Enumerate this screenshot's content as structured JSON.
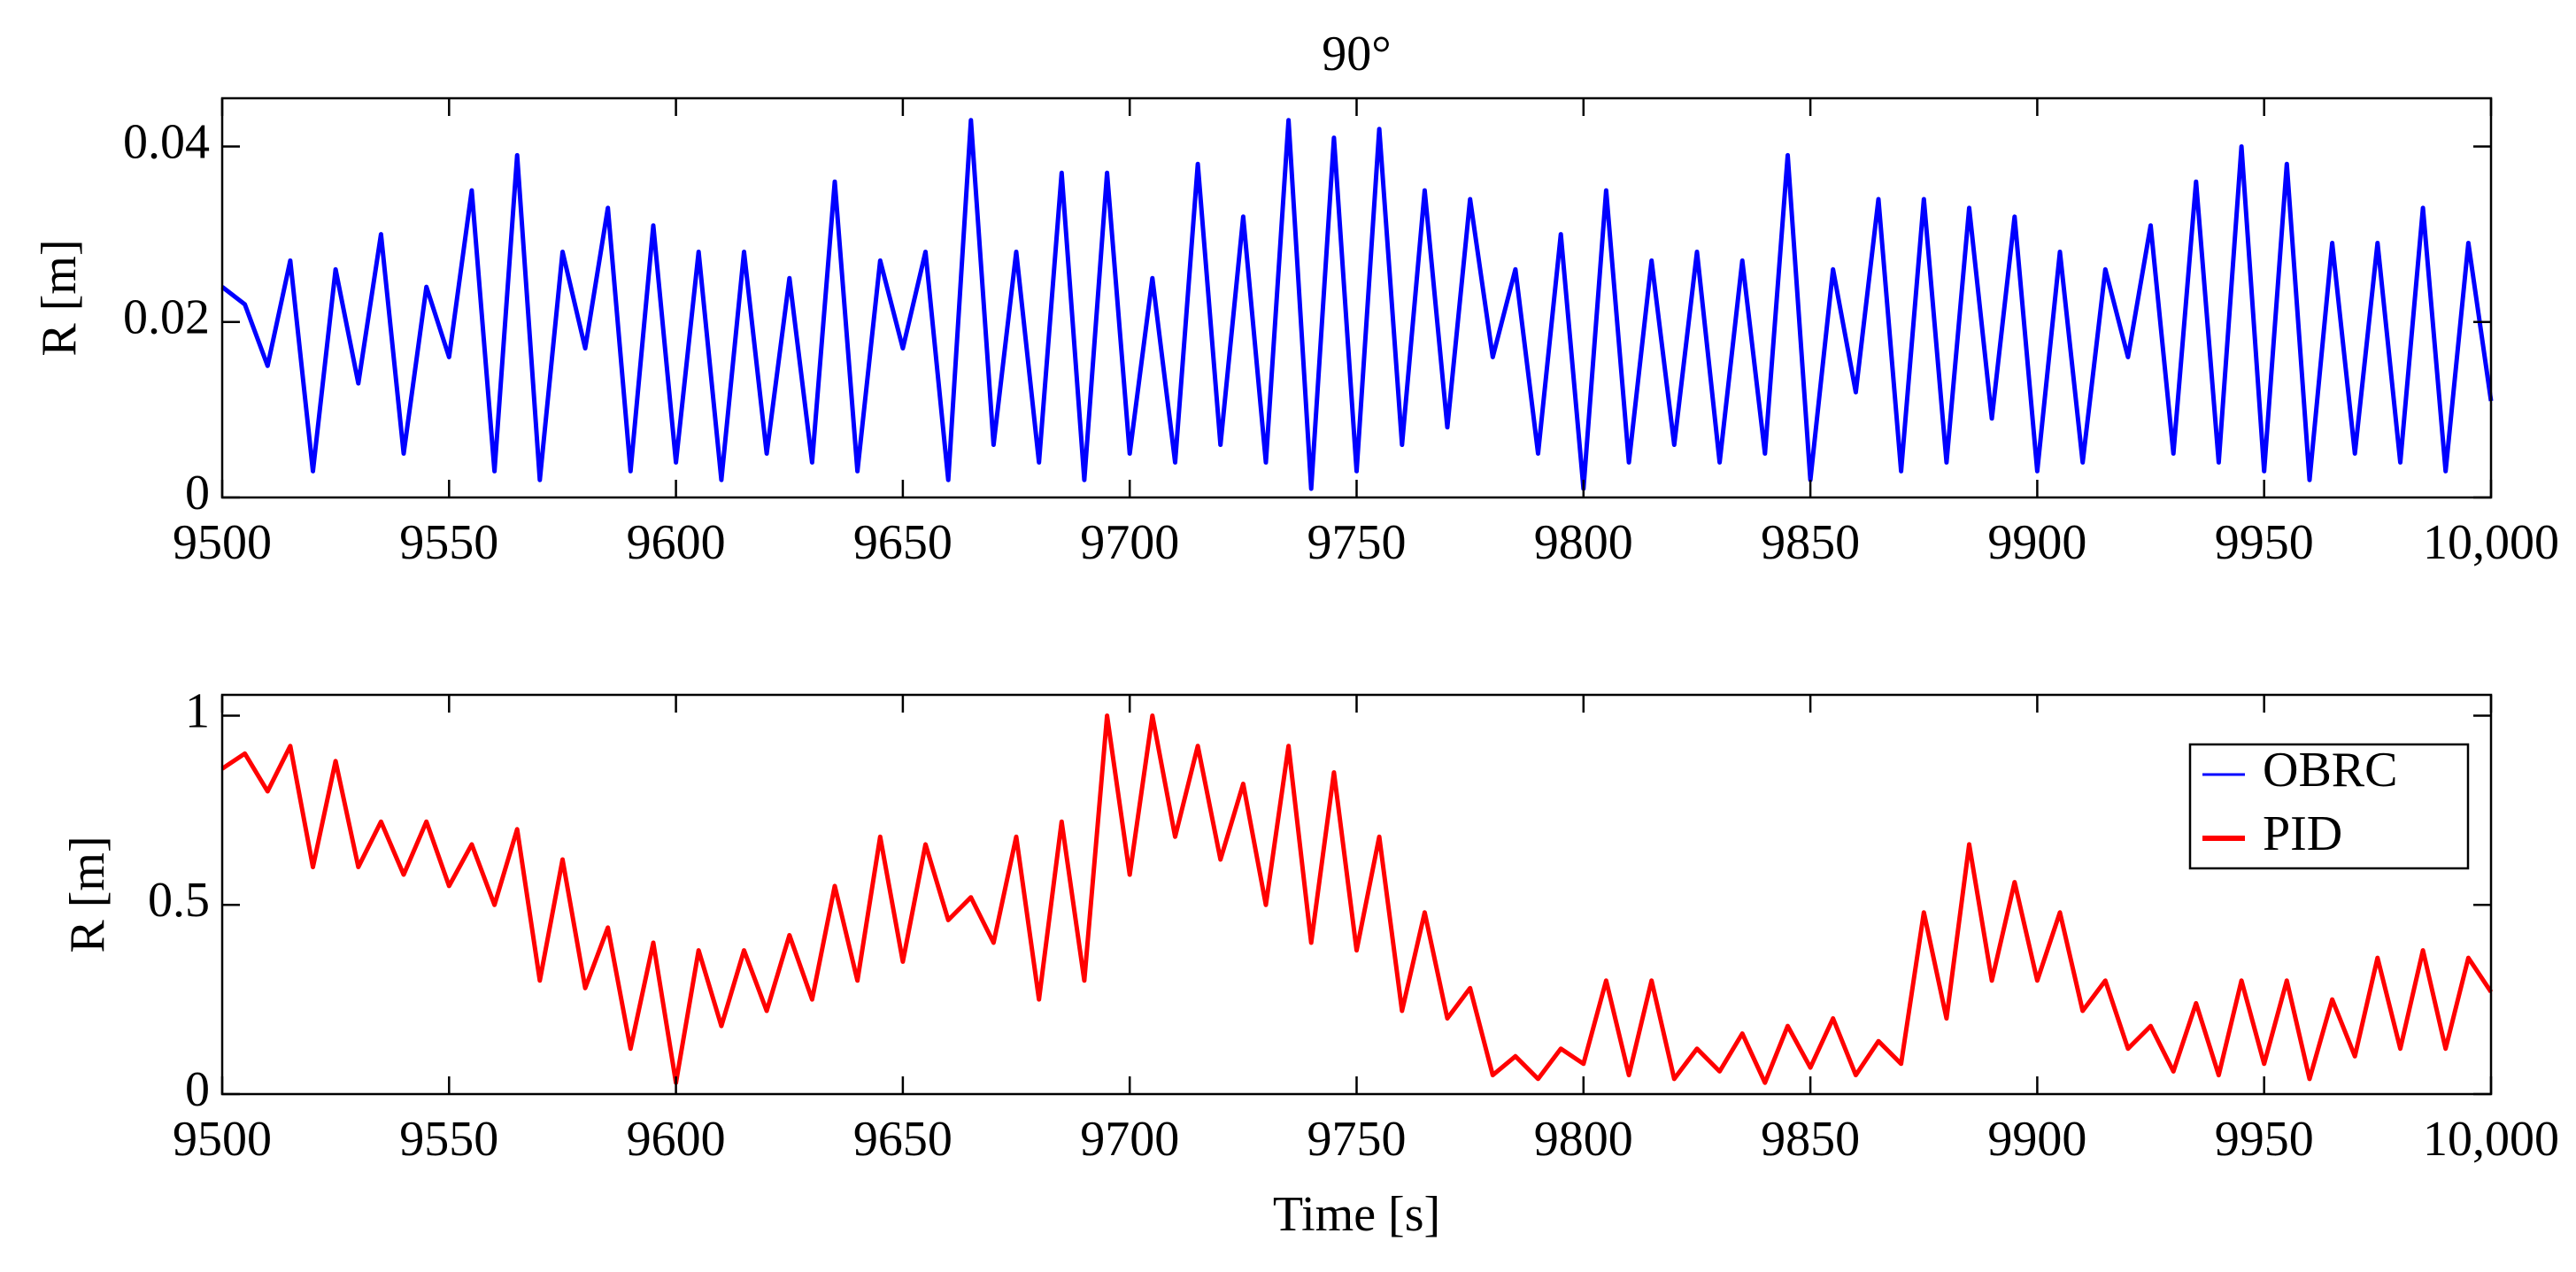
{
  "chart_data": [
    {
      "type": "line",
      "title": "90°",
      "ylabel": "R [m]",
      "x": [
        9500,
        9505,
        9510,
        9515,
        9520,
        9525,
        9530,
        9535,
        9540,
        9545,
        9550,
        9555,
        9560,
        9565,
        9570,
        9575,
        9580,
        9585,
        9590,
        9595,
        9600,
        9605,
        9610,
        9615,
        9620,
        9625,
        9630,
        9635,
        9640,
        9645,
        9650,
        9655,
        9660,
        9665,
        9670,
        9675,
        9680,
        9685,
        9690,
        9695,
        9700,
        9705,
        9710,
        9715,
        9720,
        9725,
        9730,
        9735,
        9740,
        9745,
        9750,
        9755,
        9760,
        9765,
        9770,
        9775,
        9780,
        9785,
        9790,
        9795,
        9800,
        9805,
        9810,
        9815,
        9820,
        9825,
        9830,
        9835,
        9840,
        9845,
        9850,
        9855,
        9860,
        9865,
        9870,
        9875,
        9880,
        9885,
        9890,
        9895,
        9900,
        9905,
        9910,
        9915,
        9920,
        9925,
        9930,
        9935,
        9940,
        9945,
        9950,
        9955,
        9960,
        9965,
        9970,
        9975,
        9980,
        9985,
        9990,
        9995,
        10000
      ],
      "series": [
        {
          "name": "OBRC",
          "color": "#0000ff",
          "values": [
            0.024,
            0.022,
            0.015,
            0.027,
            0.003,
            0.026,
            0.013,
            0.03,
            0.005,
            0.024,
            0.016,
            0.035,
            0.003,
            0.039,
            0.002,
            0.028,
            0.017,
            0.033,
            0.003,
            0.031,
            0.004,
            0.028,
            0.002,
            0.028,
            0.005,
            0.025,
            0.004,
            0.036,
            0.003,
            0.027,
            0.017,
            0.028,
            0.002,
            0.043,
            0.006,
            0.028,
            0.004,
            0.037,
            0.002,
            0.037,
            0.005,
            0.025,
            0.004,
            0.038,
            0.006,
            0.032,
            0.004,
            0.043,
            0.001,
            0.041,
            0.003,
            0.042,
            0.006,
            0.035,
            0.008,
            0.034,
            0.016,
            0.026,
            0.005,
            0.03,
            0.001,
            0.035,
            0.004,
            0.027,
            0.006,
            0.028,
            0.004,
            0.027,
            0.005,
            0.039,
            0.002,
            0.026,
            0.012,
            0.034,
            0.003,
            0.034,
            0.004,
            0.033,
            0.009,
            0.032,
            0.003,
            0.028,
            0.004,
            0.026,
            0.016,
            0.031,
            0.005,
            0.036,
            0.004,
            0.04,
            0.003,
            0.038,
            0.002,
            0.029,
            0.005,
            0.029,
            0.004,
            0.033,
            0.003,
            0.029,
            0.011
          ]
        }
      ],
      "xlim": [
        9500,
        10000
      ],
      "xticks": [
        9500,
        9550,
        9600,
        9650,
        9700,
        9750,
        9800,
        9850,
        9900,
        9950,
        {
          "value": 10000,
          "label": "10,000"
        }
      ],
      "ylim": [
        0,
        0.0455
      ],
      "yticks": [
        0,
        0.02,
        0.04
      ]
    },
    {
      "type": "line",
      "ylabel": "R [m]",
      "xlabel": "Time [s]",
      "legend": "upper right",
      "x": [
        9500,
        9505,
        9510,
        9515,
        9520,
        9525,
        9530,
        9535,
        9540,
        9545,
        9550,
        9555,
        9560,
        9565,
        9570,
        9575,
        9580,
        9585,
        9590,
        9595,
        9600,
        9605,
        9610,
        9615,
        9620,
        9625,
        9630,
        9635,
        9640,
        9645,
        9650,
        9655,
        9660,
        9665,
        9670,
        9675,
        9680,
        9685,
        9690,
        9695,
        9700,
        9705,
        9710,
        9715,
        9720,
        9725,
        9730,
        9735,
        9740,
        9745,
        9750,
        9755,
        9760,
        9765,
        9770,
        9775,
        9780,
        9785,
        9790,
        9795,
        9800,
        9805,
        9810,
        9815,
        9820,
        9825,
        9830,
        9835,
        9840,
        9845,
        9850,
        9855,
        9860,
        9865,
        9870,
        9875,
        9880,
        9885,
        9890,
        9895,
        9900,
        9905,
        9910,
        9915,
        9920,
        9925,
        9930,
        9935,
        9940,
        9945,
        9950,
        9955,
        9960,
        9965,
        9970,
        9975,
        9980,
        9985,
        9990,
        9995,
        10000
      ],
      "series": [
        {
          "name": "PID",
          "color": "#ff0000",
          "values": [
            0.86,
            0.9,
            0.8,
            0.92,
            0.6,
            0.88,
            0.6,
            0.72,
            0.58,
            0.72,
            0.55,
            0.66,
            0.5,
            0.7,
            0.3,
            0.62,
            0.28,
            0.44,
            0.12,
            0.4,
            0.03,
            0.38,
            0.18,
            0.38,
            0.22,
            0.42,
            0.25,
            0.55,
            0.3,
            0.68,
            0.35,
            0.66,
            0.46,
            0.52,
            0.4,
            0.68,
            0.25,
            0.72,
            0.3,
            1.0,
            0.58,
            1.0,
            0.68,
            0.92,
            0.62,
            0.82,
            0.5,
            0.92,
            0.4,
            0.85,
            0.38,
            0.68,
            0.22,
            0.48,
            0.2,
            0.28,
            0.05,
            0.1,
            0.04,
            0.12,
            0.08,
            0.3,
            0.05,
            0.3,
            0.04,
            0.12,
            0.06,
            0.16,
            0.03,
            0.18,
            0.07,
            0.2,
            0.05,
            0.14,
            0.08,
            0.48,
            0.2,
            0.66,
            0.3,
            0.56,
            0.3,
            0.48,
            0.22,
            0.3,
            0.12,
            0.18,
            0.06,
            0.24,
            0.05,
            0.3,
            0.08,
            0.3,
            0.04,
            0.25,
            0.1,
            0.36,
            0.12,
            0.38,
            0.12,
            0.36,
            0.27
          ]
        }
      ],
      "xlim": [
        9500,
        10000
      ],
      "xticks": [
        9500,
        9550,
        9600,
        9650,
        9700,
        9750,
        9800,
        9850,
        9900,
        9950,
        {
          "value": 10000,
          "label": "10,000"
        }
      ],
      "ylim": [
        0,
        1.055
      ],
      "yticks": [
        0,
        0.5,
        1
      ]
    }
  ]
}
